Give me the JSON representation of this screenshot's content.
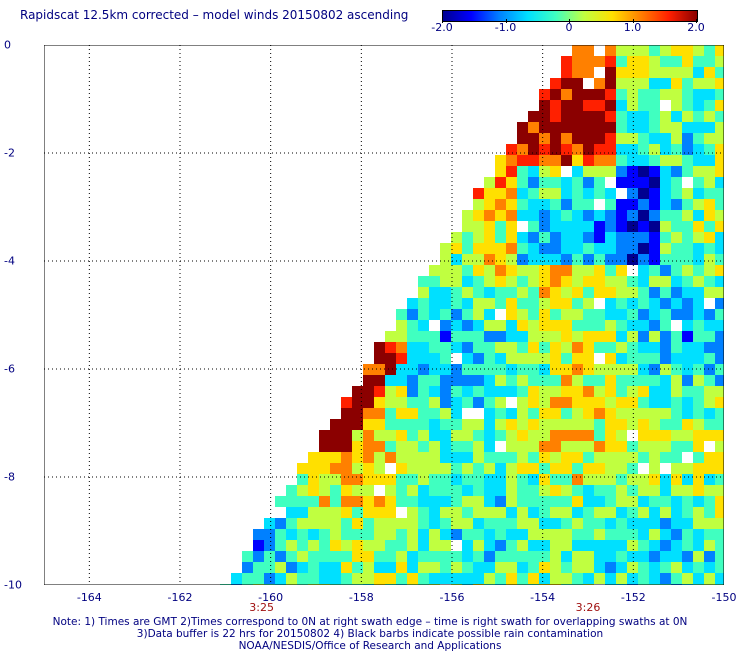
{
  "title": "Rapidscat 12.5km corrected – model winds 20150802 ascending",
  "colorbar": {
    "ticks": [
      "-2.0",
      "-1.0",
      "0",
      "1.0",
      "2.0"
    ],
    "tick_values": [
      -2.0,
      -1.0,
      0,
      1.0,
      2.0
    ],
    "range": [
      -2.0,
      2.0
    ],
    "colors": [
      "#000090",
      "#0000ff",
      "#0080ff",
      "#00e0ff",
      "#40ffc0",
      "#c0ff40",
      "#ffe000",
      "#ff8000",
      "#ff2000",
      "#8b0000"
    ]
  },
  "map": {
    "lon_range": [
      -165,
      -150
    ],
    "lat_range": [
      -10,
      0
    ],
    "x_ticks": [
      "-164",
      "-162",
      "-160",
      "-158",
      "-156",
      "-154",
      "-152",
      "-150"
    ],
    "x_tick_values": [
      -164,
      -162,
      -160,
      -158,
      -156,
      -154,
      -152,
      -150
    ],
    "y_ticks": [
      "0",
      "-2",
      "-4",
      "-6",
      "-8",
      "-10"
    ],
    "y_tick_values": [
      0,
      -2,
      -4,
      -6,
      -8,
      -10
    ],
    "grid": "dotted",
    "swath_left_edge": [
      [
        -161.0,
        -10.0
      ],
      [
        -153.3,
        0.0
      ]
    ],
    "time_labels": [
      {
        "text": "3:25",
        "lon": -160.2
      },
      {
        "text": "3:26",
        "lon": -153.0
      }
    ]
  },
  "notes": [
    "Note: 1) Times are GMT 2)Times correspond to 0N at right swath edge – time is right swath for overlapping swaths at 0N",
    "3)Data buffer is 22 hrs for 20150802 4) Black barbs indicate possible rain contamination",
    "NOAA/NESDIS/Office of Research and Applications"
  ]
}
